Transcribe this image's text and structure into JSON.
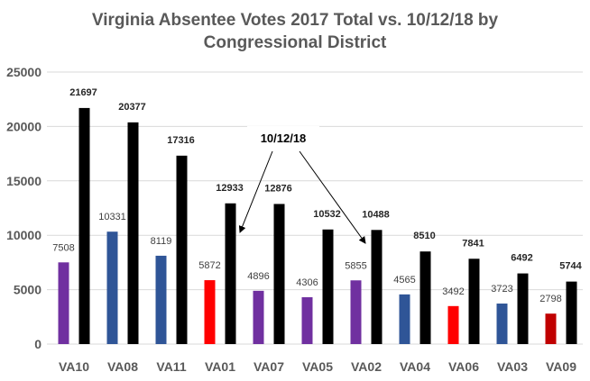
{
  "chart_data": {
    "type": "bar",
    "title_lines": [
      "Virginia Absentee Votes 2017 Total vs. 10/12/18 by",
      "Congressional District"
    ],
    "xlabel": "",
    "ylabel": "",
    "ylim": [
      0,
      25000
    ],
    "yticks": [
      0,
      5000,
      10000,
      15000,
      20000,
      25000
    ],
    "grid": true,
    "legend": "none",
    "categories": [
      "VA10",
      "VA08",
      "VA11",
      "VA01",
      "VA07",
      "VA05",
      "VA02",
      "VA04",
      "VA06",
      "VA03",
      "VA09"
    ],
    "series": [
      {
        "values": [
          7508,
          10331,
          8119,
          5872,
          4896,
          4306,
          5855,
          4565,
          3492,
          3723,
          2798
        ],
        "colors": [
          "#7030a0",
          "#2f5597",
          "#2f5597",
          "#ff0000",
          "#7030a0",
          "#7030a0",
          "#7030a0",
          "#2f5597",
          "#ff0000",
          "#2f5597",
          "#c00000"
        ]
      },
      {
        "values": [
          21697,
          20377,
          17316,
          12933,
          12876,
          10532,
          10488,
          8510,
          7841,
          6492,
          5744
        ],
        "colors": [
          "#000000",
          "#000000",
          "#000000",
          "#000000",
          "#000000",
          "#000000",
          "#000000",
          "#000000",
          "#000000",
          "#000000",
          "#000000"
        ]
      }
    ],
    "annotation": {
      "text": "10/12/18",
      "arrow_targets": [
        "VA01",
        "VA02"
      ]
    },
    "colors": {
      "gridline": "#d9d9d9",
      "tick_label": "#595959",
      "data_label": "#404040"
    }
  }
}
